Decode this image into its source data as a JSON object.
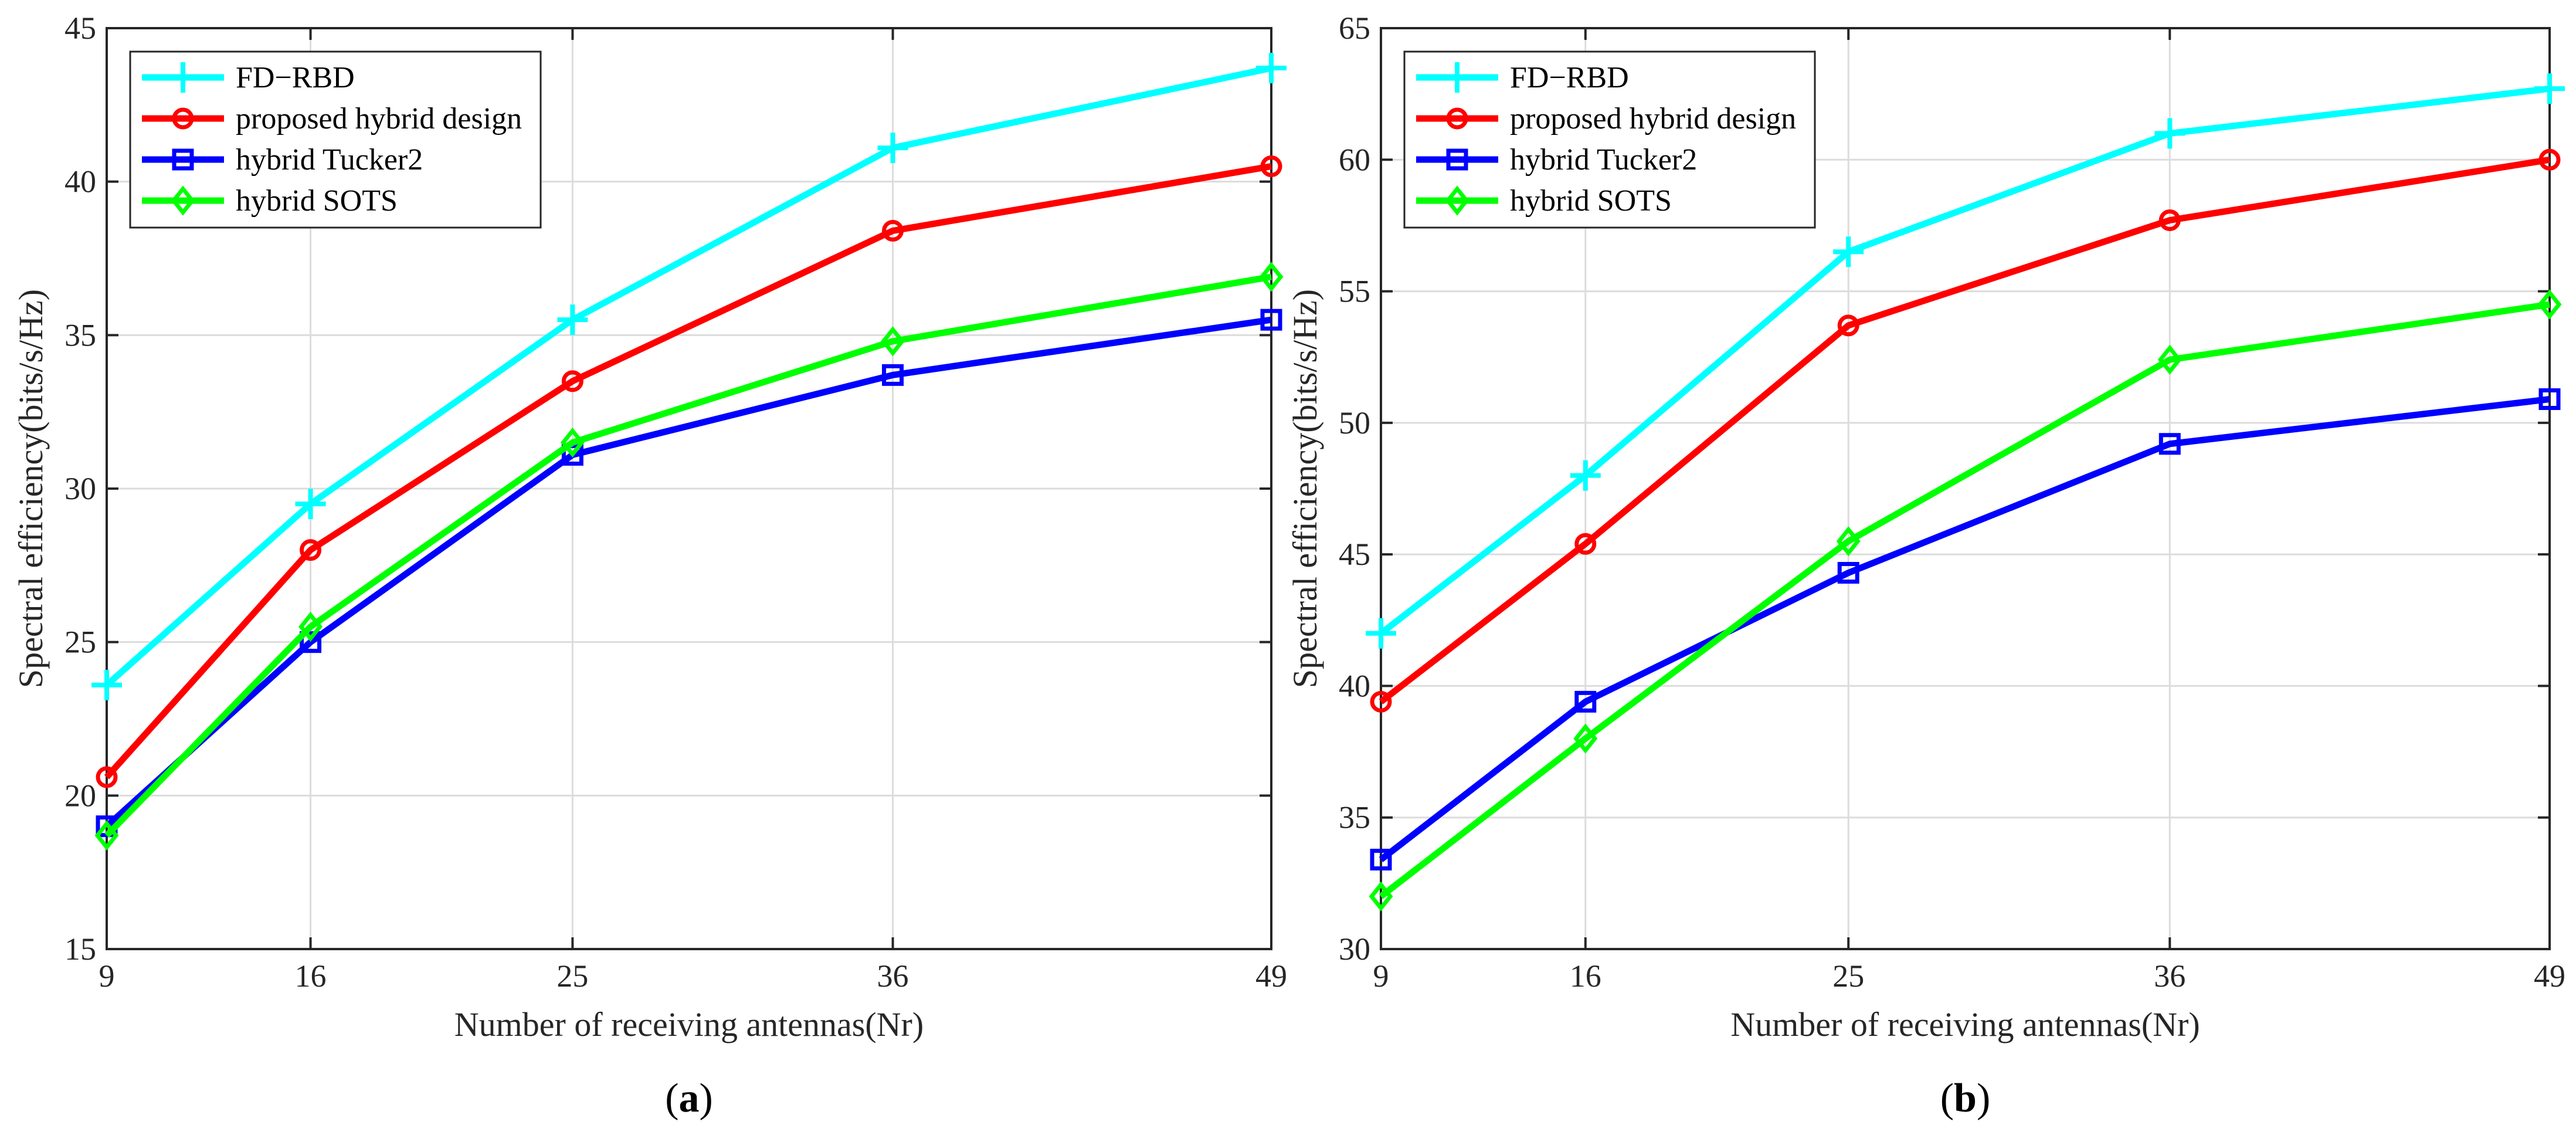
{
  "chart_data": [
    {
      "type": "line",
      "panel_label": "a",
      "x": [
        9,
        16,
        25,
        36,
        49
      ],
      "xticks": [
        "9",
        "16",
        "25",
        "36",
        "49"
      ],
      "ylim": [
        15,
        45
      ],
      "yticks": [
        "15",
        "20",
        "25",
        "30",
        "35",
        "40",
        "45"
      ],
      "xlabel": "Number of receiving antennas(Nr)",
      "ylabel": "Spectral efficiency(bits/s/Hz)",
      "grid": true,
      "legend_position": "top-left",
      "series": [
        {
          "name": "FD−RBD",
          "color": "#00ffff",
          "marker": "plus",
          "values": [
            23.6,
            29.5,
            35.5,
            41.1,
            43.7
          ]
        },
        {
          "name": "proposed hybrid design",
          "color": "#ff0000",
          "marker": "circle",
          "values": [
            20.6,
            28.0,
            33.5,
            38.4,
            40.5
          ]
        },
        {
          "name": "hybrid Tucker2",
          "color": "#0000ff",
          "marker": "square",
          "values": [
            19.0,
            25.0,
            31.1,
            33.7,
            35.5
          ]
        },
        {
          "name": "hybrid SOTS",
          "color": "#00ff00",
          "marker": "diamond",
          "values": [
            18.7,
            25.5,
            31.5,
            34.8,
            36.9
          ]
        }
      ]
    },
    {
      "type": "line",
      "panel_label": "b",
      "x": [
        9,
        16,
        25,
        36,
        49
      ],
      "xticks": [
        "9",
        "16",
        "25",
        "36",
        "49"
      ],
      "ylim": [
        30,
        65
      ],
      "yticks": [
        "30",
        "35",
        "40",
        "45",
        "50",
        "55",
        "60",
        "65"
      ],
      "xlabel": "Number of receiving antennas(Nr)",
      "ylabel": "Spectral efficiency(bits/s/Hz)",
      "grid": true,
      "legend_position": "top-left",
      "series": [
        {
          "name": "FD−RBD",
          "color": "#00ffff",
          "marker": "plus",
          "values": [
            42.0,
            48.0,
            56.5,
            61.0,
            62.7
          ]
        },
        {
          "name": "proposed hybrid design",
          "color": "#ff0000",
          "marker": "circle",
          "values": [
            39.4,
            45.4,
            53.7,
            57.7,
            60.0
          ]
        },
        {
          "name": "hybrid Tucker2",
          "color": "#0000ff",
          "marker": "square",
          "values": [
            33.4,
            39.4,
            44.3,
            49.2,
            50.9
          ]
        },
        {
          "name": "hybrid SOTS",
          "color": "#00ff00",
          "marker": "diamond",
          "values": [
            32.0,
            38.0,
            45.5,
            52.4,
            54.5
          ]
        }
      ]
    }
  ]
}
